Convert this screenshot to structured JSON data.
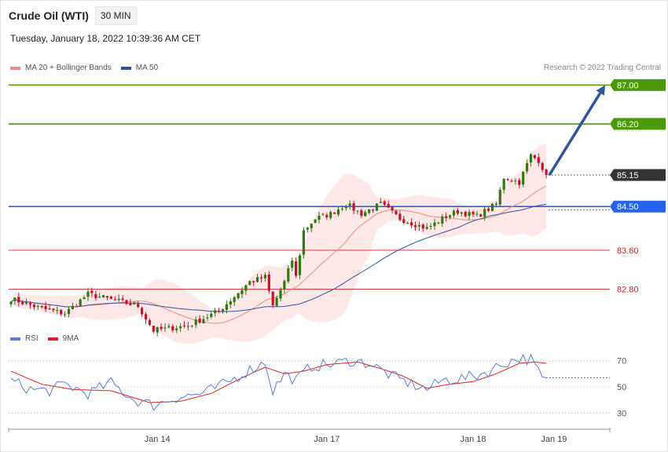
{
  "header": {
    "instrument": "Crude Oil (WTI)",
    "timeframe": "30 MIN",
    "timestamp": "Tuesday, January 18, 2022 10:39:36 AM CET",
    "credit": "Research © 2022 Trading Central"
  },
  "legend_price": [
    {
      "label": "MA 20 + Bollinger Bands",
      "color": "#f28b82"
    },
    {
      "label": "MA 50",
      "color": "#2f5597"
    }
  ],
  "legend_rsi": [
    {
      "label": "RSI",
      "color": "#5b7fd6"
    },
    {
      "label": "9MA",
      "color": "#e02020"
    }
  ],
  "chart_data": [
    {
      "type": "candlestick",
      "ylim": [
        82.0,
        87.2
      ],
      "current_price": {
        "value": 85.15,
        "label": "85.15",
        "color": "#333333"
      },
      "levels": [
        {
          "value": 87.0,
          "label": "87.00",
          "color": "#4a9a08",
          "tag": true
        },
        {
          "value": 86.2,
          "label": "86.20",
          "color": "#4a9a08",
          "tag": true
        },
        {
          "value": 84.5,
          "label": "84.50",
          "color": "#2563eb",
          "tag": true
        },
        {
          "value": 83.6,
          "label": "83.60",
          "color": "#d42020",
          "tag": false
        },
        {
          "value": 82.8,
          "label": "82.80",
          "color": "#d42020",
          "tag": false
        }
      ],
      "arrow": {
        "from": 85.15,
        "to": 87.0,
        "color": "#2f5597"
      },
      "x_ticks": [
        {
          "label": "Jan 14",
          "i": 38
        },
        {
          "label": "Jan 17",
          "i": 82
        },
        {
          "label": "Jan 18",
          "i": 120
        },
        {
          "label": "Jan 19",
          "i": 141
        }
      ],
      "anchors": [
        [
          0,
          82.6
        ],
        [
          8,
          82.4
        ],
        [
          14,
          82.3
        ],
        [
          20,
          82.7
        ],
        [
          28,
          82.55
        ],
        [
          33,
          82.45
        ],
        [
          37,
          81.95
        ],
        [
          46,
          82.05
        ],
        [
          54,
          82.35
        ],
        [
          62,
          82.95
        ],
        [
          66,
          83.05
        ],
        [
          68,
          82.45
        ],
        [
          71,
          82.95
        ],
        [
          73,
          83.4
        ],
        [
          74,
          83.05
        ],
        [
          76,
          84.0
        ],
        [
          79,
          84.25
        ],
        [
          83,
          84.35
        ],
        [
          87,
          84.55
        ],
        [
          91,
          84.35
        ],
        [
          96,
          84.55
        ],
        [
          101,
          84.25
        ],
        [
          108,
          84.05
        ],
        [
          113,
          84.3
        ],
        [
          116,
          84.4
        ],
        [
          121,
          84.3
        ],
        [
          126,
          84.55
        ],
        [
          128,
          85.1
        ],
        [
          132,
          85.0
        ],
        [
          135,
          85.55
        ],
        [
          137,
          85.45
        ],
        [
          139,
          85.15
        ]
      ]
    },
    {
      "type": "line",
      "ylim": [
        20,
        80
      ],
      "y_ticks": [
        70,
        50,
        30
      ],
      "series": [
        {
          "name": "RSI",
          "color": "#5b7fd6"
        },
        {
          "name": "9MA",
          "color": "#e02020"
        }
      ],
      "rsi_anchors": [
        [
          0,
          55
        ],
        [
          5,
          48
        ],
        [
          10,
          47
        ],
        [
          14,
          52
        ],
        [
          20,
          45
        ],
        [
          26,
          53
        ],
        [
          32,
          40
        ],
        [
          37,
          36
        ],
        [
          43,
          42
        ],
        [
          50,
          45
        ],
        [
          56,
          53
        ],
        [
          62,
          63
        ],
        [
          66,
          69
        ],
        [
          68,
          47
        ],
        [
          71,
          60
        ],
        [
          74,
          55
        ],
        [
          78,
          66
        ],
        [
          83,
          67
        ],
        [
          88,
          70
        ],
        [
          93,
          68
        ],
        [
          99,
          58
        ],
        [
          104,
          52
        ],
        [
          108,
          48
        ],
        [
          112,
          55
        ],
        [
          116,
          56
        ],
        [
          120,
          58
        ],
        [
          124,
          62
        ],
        [
          128,
          68
        ],
        [
          132,
          72
        ],
        [
          135,
          71
        ],
        [
          138,
          56
        ],
        [
          139,
          57
        ]
      ],
      "ma_anchors": [
        [
          0,
          62
        ],
        [
          8,
          52
        ],
        [
          16,
          48
        ],
        [
          26,
          47
        ],
        [
          36,
          38
        ],
        [
          44,
          39
        ],
        [
          52,
          45
        ],
        [
          60,
          57
        ],
        [
          66,
          65
        ],
        [
          71,
          60
        ],
        [
          76,
          62
        ],
        [
          82,
          67
        ],
        [
          90,
          69
        ],
        [
          96,
          64
        ],
        [
          102,
          58
        ],
        [
          108,
          49
        ],
        [
          114,
          52
        ],
        [
          120,
          54
        ],
        [
          126,
          60
        ],
        [
          132,
          68
        ],
        [
          136,
          69
        ],
        [
          139,
          68
        ]
      ],
      "last_rsi": 57
    }
  ]
}
